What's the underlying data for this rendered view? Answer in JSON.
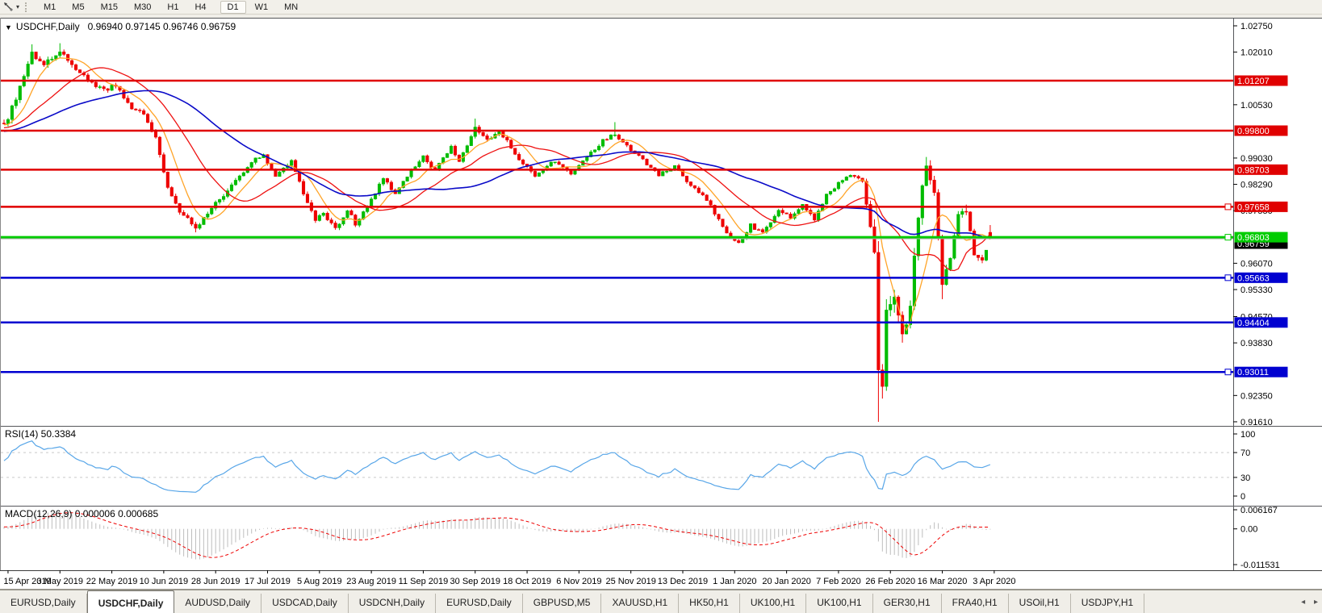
{
  "icons": {
    "collapse": "▼",
    "toolbar_dropdown": "▾",
    "tab_prev": "◂",
    "tab_next": "▸"
  },
  "toolbar": {
    "timeframes": [
      "M1",
      "M5",
      "M15",
      "M30",
      "H1",
      "H4",
      "D1",
      "W1",
      "MN"
    ],
    "active_timeframe": "D1"
  },
  "chart": {
    "title": "USDCHF,Daily",
    "ohlc_text": "0.96940 0.97145 0.96746 0.96759"
  },
  "chart_data": {
    "type": "candlestick",
    "symbol": "USDCHF",
    "period": "Daily",
    "current_ohlc": {
      "open": 0.9694,
      "high": 0.97145,
      "low": 0.96746,
      "close": 0.96759
    },
    "price_axis": {
      "ticks": [
        "1.02750",
        "1.02010",
        "1.00530",
        "0.99030",
        "0.98290",
        "0.97550",
        "0.96070",
        "0.95330",
        "0.94570",
        "0.93830",
        "0.92350",
        "0.91610"
      ],
      "visible_top": 1.02977,
      "visible_bottom": 0.9138
    },
    "time_axis": {
      "labels": [
        "15 Apr 2019",
        "3 May 2019",
        "22 May 2019",
        "10 Jun 2019",
        "28 Jun 2019",
        "17 Jul 2019",
        "5 Aug 2019",
        "23 Aug 2019",
        "11 Sep 2019",
        "30 Sep 2019",
        "18 Oct 2019",
        "6 Nov 2019",
        "25 Nov 2019",
        "13 Dec 2019",
        "1 Jan 2020",
        "20 Jan 2020",
        "7 Feb 2020",
        "26 Feb 2020",
        "16 Mar 2020",
        "3 Apr 2020"
      ],
      "bars_per_label": 13
    },
    "horizontal_lines": [
      {
        "price": 1.01207,
        "label": "1.01207",
        "color": "#e00000",
        "width": 2.5,
        "selected": false
      },
      {
        "price": 0.998,
        "label": "0.99800",
        "color": "#e00000",
        "width": 2.5,
        "selected": false
      },
      {
        "price": 0.98703,
        "label": "0.98703",
        "color": "#e00000",
        "width": 2.5,
        "selected": false
      },
      {
        "price": 0.97658,
        "label": "0.97658",
        "color": "#e00000",
        "width": 2.5,
        "selected": true
      },
      {
        "price": 0.96803,
        "label": "0.96803",
        "color": "#00cc00",
        "width": 3,
        "selected": true
      },
      {
        "price": 0.95663,
        "label": "0.95663",
        "color": "#0000d0",
        "width": 2.5,
        "selected": true
      },
      {
        "price": 0.94404,
        "label": "0.94404",
        "color": "#0000d0",
        "width": 2.5,
        "selected": false
      },
      {
        "price": 0.93011,
        "label": "0.93011",
        "color": "#0000d0",
        "width": 2.5,
        "selected": true
      }
    ],
    "current_price_line": {
      "price": 0.96759,
      "label": "0.96759",
      "line_color": "#aaaaaa",
      "label_bg": "#000000"
    },
    "candles": {
      "count": 248,
      "up_color": "#00bc00",
      "down_color": "#ee0000",
      "seed": 9,
      "warmup_bars": 55,
      "warmup_start_price": 0.995,
      "path_anchors": [
        [
          0,
          0.9995,
          0.002
        ],
        [
          3,
          1.007,
          0.0022
        ],
        [
          7,
          1.0195,
          0.0018
        ],
        [
          10,
          1.0162,
          0.0016
        ],
        [
          14,
          1.0205,
          0.0016
        ],
        [
          17,
          1.0168,
          0.0016
        ],
        [
          21,
          1.0122,
          0.0016
        ],
        [
          25,
          1.0092,
          0.0014
        ],
        [
          28,
          1.011,
          0.0014
        ],
        [
          32,
          1.0042,
          0.0014
        ],
        [
          35,
          1.0026,
          0.0013
        ],
        [
          38,
          0.9962,
          0.0015
        ],
        [
          41,
          0.9818,
          0.0016
        ],
        [
          44,
          0.9752,
          0.0014
        ],
        [
          48,
          0.9706,
          0.0013
        ],
        [
          50,
          0.9736,
          0.0013
        ],
        [
          53,
          0.9776,
          0.0013
        ],
        [
          57,
          0.9822,
          0.0013
        ],
        [
          62,
          0.9893,
          0.0013
        ],
        [
          65,
          0.9908,
          0.0012
        ],
        [
          68,
          0.9848,
          0.0013
        ],
        [
          72,
          0.9898,
          0.0012
        ],
        [
          75,
          0.9806,
          0.0015
        ],
        [
          78,
          0.9727,
          0.0014
        ],
        [
          80,
          0.9748,
          0.0013
        ],
        [
          83,
          0.9702,
          0.0013
        ],
        [
          86,
          0.9758,
          0.0012
        ],
        [
          88,
          0.9718,
          0.0012
        ],
        [
          91,
          0.977,
          0.0012
        ],
        [
          95,
          0.9843,
          0.0012
        ],
        [
          98,
          0.9803,
          0.0012
        ],
        [
          102,
          0.9868,
          0.0011
        ],
        [
          105,
          0.9906,
          0.0011
        ],
        [
          108,
          0.9868,
          0.0011
        ],
        [
          112,
          0.9932,
          0.0011
        ],
        [
          114,
          0.9897,
          0.0011
        ],
        [
          118,
          0.9986,
          0.0012
        ],
        [
          121,
          0.9952,
          0.0011
        ],
        [
          124,
          0.9982,
          0.0011
        ],
        [
          127,
          0.9932,
          0.0011
        ],
        [
          130,
          0.9888,
          0.0011
        ],
        [
          133,
          0.9856,
          0.0011
        ],
        [
          138,
          0.9896,
          0.001
        ],
        [
          142,
          0.9862,
          0.001
        ],
        [
          146,
          0.9904,
          0.001
        ],
        [
          150,
          0.9952,
          0.001
        ],
        [
          153,
          0.9972,
          0.0011
        ],
        [
          156,
          0.9936,
          0.001
        ],
        [
          160,
          0.9898,
          0.001
        ],
        [
          164,
          0.9856,
          0.001
        ],
        [
          168,
          0.9878,
          0.001
        ],
        [
          172,
          0.9826,
          0.001
        ],
        [
          176,
          0.9788,
          0.0011
        ],
        [
          179,
          0.9729,
          0.0012
        ],
        [
          182,
          0.9676,
          0.0012
        ],
        [
          184,
          0.9662,
          0.0012
        ],
        [
          187,
          0.9714,
          0.0011
        ],
        [
          190,
          0.9692,
          0.0011
        ],
        [
          194,
          0.9758,
          0.0011
        ],
        [
          197,
          0.9736,
          0.001
        ],
        [
          200,
          0.9774,
          0.001
        ],
        [
          203,
          0.9732,
          0.0011
        ],
        [
          206,
          0.9799,
          0.0011
        ],
        [
          210,
          0.9844,
          0.001
        ],
        [
          213,
          0.9854,
          0.001
        ],
        [
          215,
          0.9836,
          0.0012
        ],
        [
          216,
          0.9772,
          0.0022
        ],
        [
          218,
          0.963,
          0.005
        ],
        [
          219,
          0.932,
          0.009
        ],
        [
          220,
          0.9282,
          0.0075
        ],
        [
          221,
          0.9458,
          0.006
        ],
        [
          223,
          0.953,
          0.0045
        ],
        [
          225,
          0.9392,
          0.005
        ],
        [
          227,
          0.9482,
          0.0045
        ],
        [
          229,
          0.9748,
          0.0045
        ],
        [
          231,
          0.9878,
          0.0035
        ],
        [
          233,
          0.9798,
          0.003
        ],
        [
          235,
          0.956,
          0.003
        ],
        [
          237,
          0.9622,
          0.0025
        ],
        [
          239,
          0.9738,
          0.002
        ],
        [
          241,
          0.9758,
          0.0018
        ],
        [
          243,
          0.9636,
          0.0018
        ],
        [
          245,
          0.961,
          0.0016
        ],
        [
          247,
          0.96759,
          0.0014
        ]
      ],
      "forced_extremes": [
        {
          "bar": 7,
          "high": 1.0223
        },
        {
          "bar": 14,
          "high": 1.0226
        },
        {
          "bar": 48,
          "low": 0.9694
        },
        {
          "bar": 118,
          "high": 1.0014
        },
        {
          "bar": 153,
          "high": 1.0004
        },
        {
          "bar": 219,
          "low": 0.9161
        },
        {
          "bar": 231,
          "high": 0.9906
        },
        {
          "bar": 235,
          "low": 0.9506
        },
        {
          "bar": 241,
          "high": 0.9772
        }
      ]
    },
    "moving_averages": [
      {
        "period": 8,
        "color": "#ffa428",
        "width": 1.3
      },
      {
        "period": 21,
        "color": "#ee1111",
        "width": 1.3
      },
      {
        "period": 45,
        "color": "#0a0ac8",
        "width": 1.6
      }
    ],
    "rsi": {
      "label": "RSI(14) 50.3384",
      "period": 14,
      "color": "#58a6e8",
      "scale_labels": [
        "100",
        "70",
        "30",
        "0"
      ],
      "scale_values": [
        100,
        70,
        30,
        0
      ],
      "dashed_levels": [
        70,
        30
      ]
    },
    "macd": {
      "label": "MACD(12,26,9) 0.000006 0.000685",
      "fast": 12,
      "slow": 26,
      "signal": 9,
      "histogram_color": "#bdbdbd",
      "signal_color": "#ee0000",
      "scale_labels": [
        "0.006167",
        "0.00",
        "-0.011531"
      ],
      "scale_values": [
        0.006167,
        0,
        -0.011531
      ]
    }
  },
  "tabs": {
    "items": [
      "EURUSD,Daily",
      "USDCHF,Daily",
      "AUDUSD,Daily",
      "USDCAD,Daily",
      "USDCNH,Daily",
      "EURUSD,Daily",
      "GBPUSD,M5",
      "XAUUSD,H1",
      "HK50,H1",
      "UK100,H1",
      "UK100,H1",
      "GER30,H1",
      "FRA40,H1",
      "USOil,H1",
      "USDJPY,H1"
    ],
    "active_index": 1
  }
}
